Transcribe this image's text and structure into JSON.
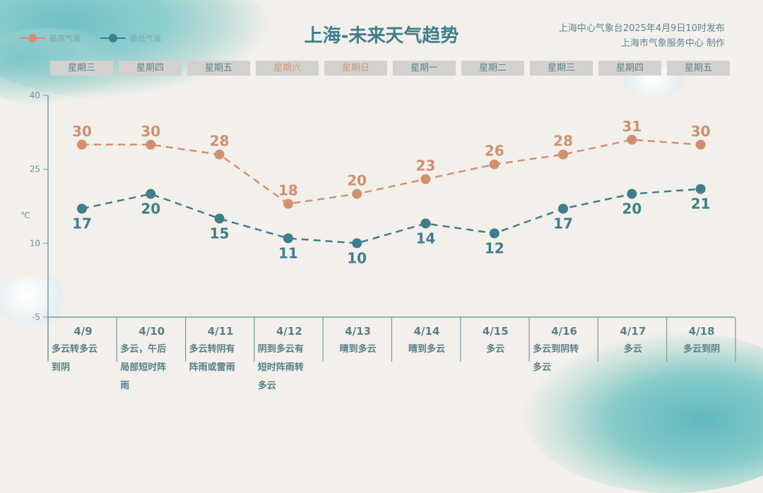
{
  "header": {
    "title": "上海-未来天气趋势",
    "publisher_line1": "上海中心气象台2025年4月9日10时发布",
    "publisher_line2": "上海市气象服务中心 制作"
  },
  "legend": [
    {
      "label": "最高气温",
      "color": "#d09070"
    },
    {
      "label": "最低气温",
      "color": "#3f7e8c"
    }
  ],
  "weekdays": [
    {
      "label": "星期三",
      "weekend": false
    },
    {
      "label": "星期四",
      "weekend": false
    },
    {
      "label": "星期五",
      "weekend": false
    },
    {
      "label": "星期六",
      "weekend": true
    },
    {
      "label": "星期日",
      "weekend": true
    },
    {
      "label": "星期一",
      "weekend": false
    },
    {
      "label": "星期二",
      "weekend": false
    },
    {
      "label": "星期三",
      "weekend": false
    },
    {
      "label": "星期四",
      "weekend": false
    },
    {
      "label": "星期五",
      "weekend": false
    }
  ],
  "days": [
    {
      "date": "4/9",
      "desc": [
        "多云转多云",
        "到阴"
      ],
      "align": "left"
    },
    {
      "date": "4/10",
      "desc": [
        "多云，午后",
        "局部短时阵",
        "雨"
      ],
      "align": "left"
    },
    {
      "date": "4/11",
      "desc": [
        "多云转阴有",
        "阵雨或雷雨"
      ],
      "align": "left"
    },
    {
      "date": "4/12",
      "desc": [
        "阴到多云有",
        "短时阵雨转",
        "多云"
      ],
      "align": "left"
    },
    {
      "date": "4/13",
      "desc": [
        "晴到多云"
      ],
      "align": "center"
    },
    {
      "date": "4/14",
      "desc": [
        "晴到多云"
      ],
      "align": "center"
    },
    {
      "date": "4/15",
      "desc": [
        "多云"
      ],
      "align": "center"
    },
    {
      "date": "4/16",
      "desc": [
        "多云到阴转",
        "多云"
      ],
      "align": "left"
    },
    {
      "date": "4/17",
      "desc": [
        "多云"
      ],
      "align": "center"
    },
    {
      "date": "4/18",
      "desc": [
        "多云到阴"
      ],
      "align": "center"
    }
  ],
  "colors": {
    "high": "#d09070",
    "low": "#3f7e8c",
    "axis": "#7d9aa2"
  },
  "chart_data": {
    "type": "line",
    "title": "上海-未来天气趋势",
    "categories": [
      "4/9",
      "4/10",
      "4/11",
      "4/12",
      "4/13",
      "4/14",
      "4/15",
      "4/16",
      "4/17",
      "4/18"
    ],
    "series": [
      {
        "name": "最高气温",
        "values": [
          30,
          30,
          28,
          18,
          20,
          23,
          26,
          28,
          31,
          30
        ],
        "color": "#d09070",
        "style": "dashed"
      },
      {
        "name": "最低气温",
        "values": [
          17,
          20,
          15,
          11,
          10,
          14,
          12,
          17,
          20,
          21
        ],
        "color": "#3f7e8c",
        "style": "dashed"
      }
    ],
    "xlabel": "",
    "ylabel": "℃",
    "ylim": [
      -5,
      40
    ],
    "yticks": [
      40,
      25,
      10,
      -5
    ],
    "grid": false,
    "legend_position": "top-left"
  }
}
